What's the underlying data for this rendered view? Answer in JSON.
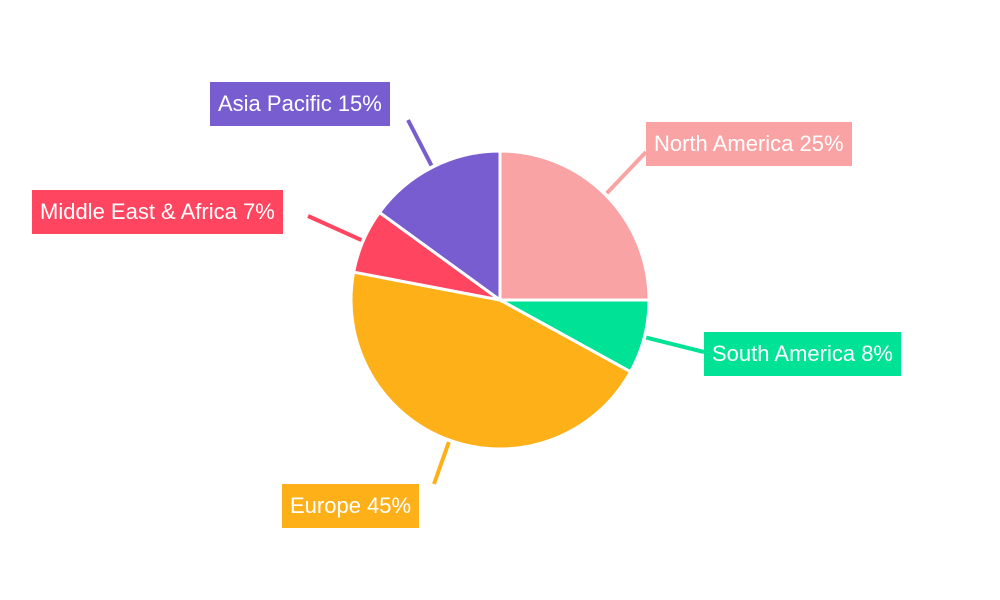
{
  "chart_data": {
    "type": "pie",
    "title": "",
    "start_angle": "12 o'clock, clockwise",
    "slices": [
      {
        "label": "North America",
        "value": 25,
        "display": "North America 25%",
        "color": "#f9a3a4"
      },
      {
        "label": "South America",
        "value": 8,
        "display": "South America 8%",
        "color": "#00e396"
      },
      {
        "label": "Europe",
        "value": 45,
        "display": "Europe 45%",
        "color": "#feb019"
      },
      {
        "label": "Middle East & Africa",
        "value": 7,
        "display": "Middle East & Africa 7%",
        "color": "#ff4560"
      },
      {
        "label": "Asia Pacific",
        "value": 15,
        "display": "Asia Pacific 15%",
        "color": "#775dd0"
      }
    ],
    "legend": "none"
  }
}
